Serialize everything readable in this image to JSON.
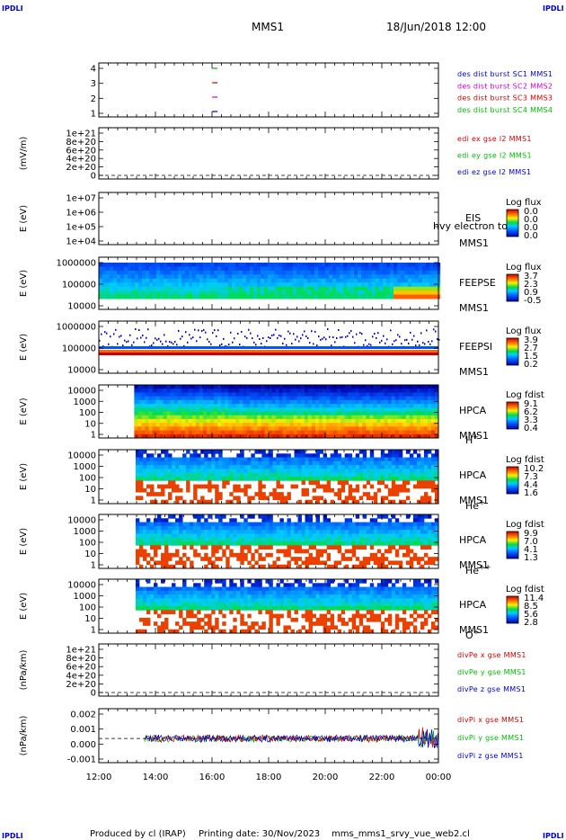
{
  "header": {
    "corner_left_top": "IPDLI",
    "corner_right_top": "IPDLI",
    "corner_left_bottom": "IPDLI",
    "corner_right_bottom": "IPDLI",
    "mission": "MMS1",
    "date_time": "18/Jun/2018 12:00"
  },
  "footer": {
    "produced_by": "Produced by cl (IRAP)",
    "printing_date": "Printing date: 30/Nov/2023",
    "file": "mms_mms1_srvy_vue_web2.cl"
  },
  "colors": {
    "mms1": "#0000cc",
    "mms2": "#cc00cc",
    "mms3": "#cc0000",
    "mms4": "#00bb00"
  },
  "chart_data": [
    {
      "type": "scatter",
      "name": "des-dist-burst",
      "ylabel": "",
      "ylim": [
        0.5,
        4.5
      ],
      "yticks": [
        "4",
        "3",
        "2",
        "1"
      ],
      "legend": [
        {
          "text": "des dist burst SC1 MMS1",
          "color": "#0000cc"
        },
        {
          "text": "des dist burst SC2 MMS2",
          "color": "#cc00cc"
        },
        {
          "text": "des dist burst SC3 MMS3",
          "color": "#cc0000"
        },
        {
          "text": "des dist burst SC4 MMS4",
          "color": "#00bb00"
        }
      ],
      "series": [
        {
          "spacecraft": 4,
          "x_hours": [
            16.1
          ],
          "color": "#00bb00"
        },
        {
          "spacecraft": 3,
          "x_hours": [
            16.1
          ],
          "color": "#cc0000"
        },
        {
          "spacecraft": 2,
          "x_hours": [
            16.1
          ],
          "color": "#cc00cc"
        },
        {
          "spacecraft": 1,
          "x_hours": [
            16.1
          ],
          "color": "#0000cc"
        }
      ]
    },
    {
      "type": "line",
      "name": "edi-e",
      "ylabel": "(mV/m)",
      "yticks": [
        "1e+21",
        "8e+20",
        "6e+20",
        "4e+20",
        "2e+20",
        "0"
      ],
      "legend": [
        {
          "text": "edi ex gse l2 MMS1",
          "color": "#cc0000"
        },
        {
          "text": "edi ey gse l2 MMS1",
          "color": "#00bb00"
        },
        {
          "text": "edi ez gse l2 MMS1",
          "color": "#0000cc"
        }
      ]
    },
    {
      "type": "heatmap",
      "name": "eis",
      "ylabel": "E (eV)",
      "yticks": [
        "1e+07",
        "1e+06",
        "1e+05",
        "1e+04"
      ],
      "labels": [
        "EIS",
        "MMS1"
      ],
      "overlay_text": "hvy electron to",
      "colorbar": {
        "title": "Log flux",
        "ticks": [
          "0.0",
          "0.0",
          "0.0",
          "0.0"
        ]
      }
    },
    {
      "type": "heatmap",
      "name": "feeps-e",
      "ylabel": "E (eV)",
      "yticks": [
        "1000000",
        "100000",
        "10000"
      ],
      "labels": [
        "FEEPSE",
        "MMS1"
      ],
      "colorbar": {
        "title": "Log flux",
        "ticks": [
          "3.7",
          "2.3",
          "0.9",
          "-0.5"
        ]
      }
    },
    {
      "type": "heatmap",
      "name": "feeps-i",
      "ylabel": "E (eV)",
      "yticks": [
        "1000000",
        "100000",
        "10000"
      ],
      "labels": [
        "FEEPSI",
        "MMS1"
      ],
      "colorbar": {
        "title": "Log flux",
        "ticks": [
          "3.9",
          "2.7",
          "1.5",
          "0.2"
        ]
      }
    },
    {
      "type": "heatmap",
      "name": "hpca-h",
      "ylabel": "E (eV)",
      "yticks": [
        "10000",
        "1000",
        "100",
        "10",
        "1"
      ],
      "labels": [
        "HPCA",
        "MMS1"
      ],
      "species": "H",
      "species_sup": "+",
      "colorbar": {
        "title": "Log fdist",
        "ticks": [
          "9.1",
          "6.2",
          "3.3",
          "0.4"
        ]
      }
    },
    {
      "type": "heatmap",
      "name": "hpca-he",
      "ylabel": "E (eV)",
      "yticks": [
        "10000",
        "1000",
        "100",
        "10",
        "1"
      ],
      "labels": [
        "HPCA",
        "MMS1"
      ],
      "species": "He",
      "species_sup": "+",
      "colorbar": {
        "title": "Log fdist",
        "ticks": [
          "10.2",
          "7.3",
          "4.4",
          "1.6"
        ]
      }
    },
    {
      "type": "heatmap",
      "name": "hpca-he2",
      "ylabel": "E (eV)",
      "yticks": [
        "10000",
        "1000",
        "100",
        "10",
        "1"
      ],
      "labels": [
        "HPCA",
        "MMS1"
      ],
      "species": "He",
      "species_sup": "++",
      "colorbar": {
        "title": "Log fdist",
        "ticks": [
          "9.9",
          "7.0",
          "4.1",
          "1.3"
        ]
      }
    },
    {
      "type": "heatmap",
      "name": "hpca-o",
      "ylabel": "E (eV)",
      "yticks": [
        "10000",
        "1000",
        "100",
        "10",
        "1"
      ],
      "labels": [
        "HPCA",
        "MMS1"
      ],
      "species": "O",
      "species_sup": "+",
      "colorbar": {
        "title": "Log fdist",
        "ticks": [
          "11.4",
          "8.5",
          "5.6",
          "2.8"
        ]
      }
    },
    {
      "type": "line",
      "name": "divpe",
      "ylabel": "(nPa/km)",
      "yticks": [
        "1e+21",
        "8e+20",
        "6e+20",
        "4e+20",
        "2e+20",
        "0"
      ],
      "legend": [
        {
          "text": "divPe x gse MMS1",
          "color": "#cc0000"
        },
        {
          "text": "divPe y gse MMS1",
          "color": "#00bb00"
        },
        {
          "text": "divPe z gse MMS1",
          "color": "#0000cc"
        }
      ]
    },
    {
      "type": "line",
      "name": "divpi",
      "ylabel": "(nPa/km)",
      "yticks": [
        "0.002",
        "0.001",
        "0.000",
        "-0.001"
      ],
      "ylim": [
        -0.0017,
        0.0021
      ],
      "legend": [
        {
          "text": "divPi x gse MMS1",
          "color": "#cc0000"
        },
        {
          "text": "divPi y gse MMS1",
          "color": "#00bb00"
        },
        {
          "text": "divPi z gse MMS1",
          "color": "#0000cc"
        }
      ]
    }
  ],
  "xaxis": {
    "ticks": [
      "12:00",
      "14:00",
      "16:00",
      "18:00",
      "20:00",
      "22:00",
      "00:00"
    ],
    "range_hours": [
      12,
      24
    ]
  }
}
